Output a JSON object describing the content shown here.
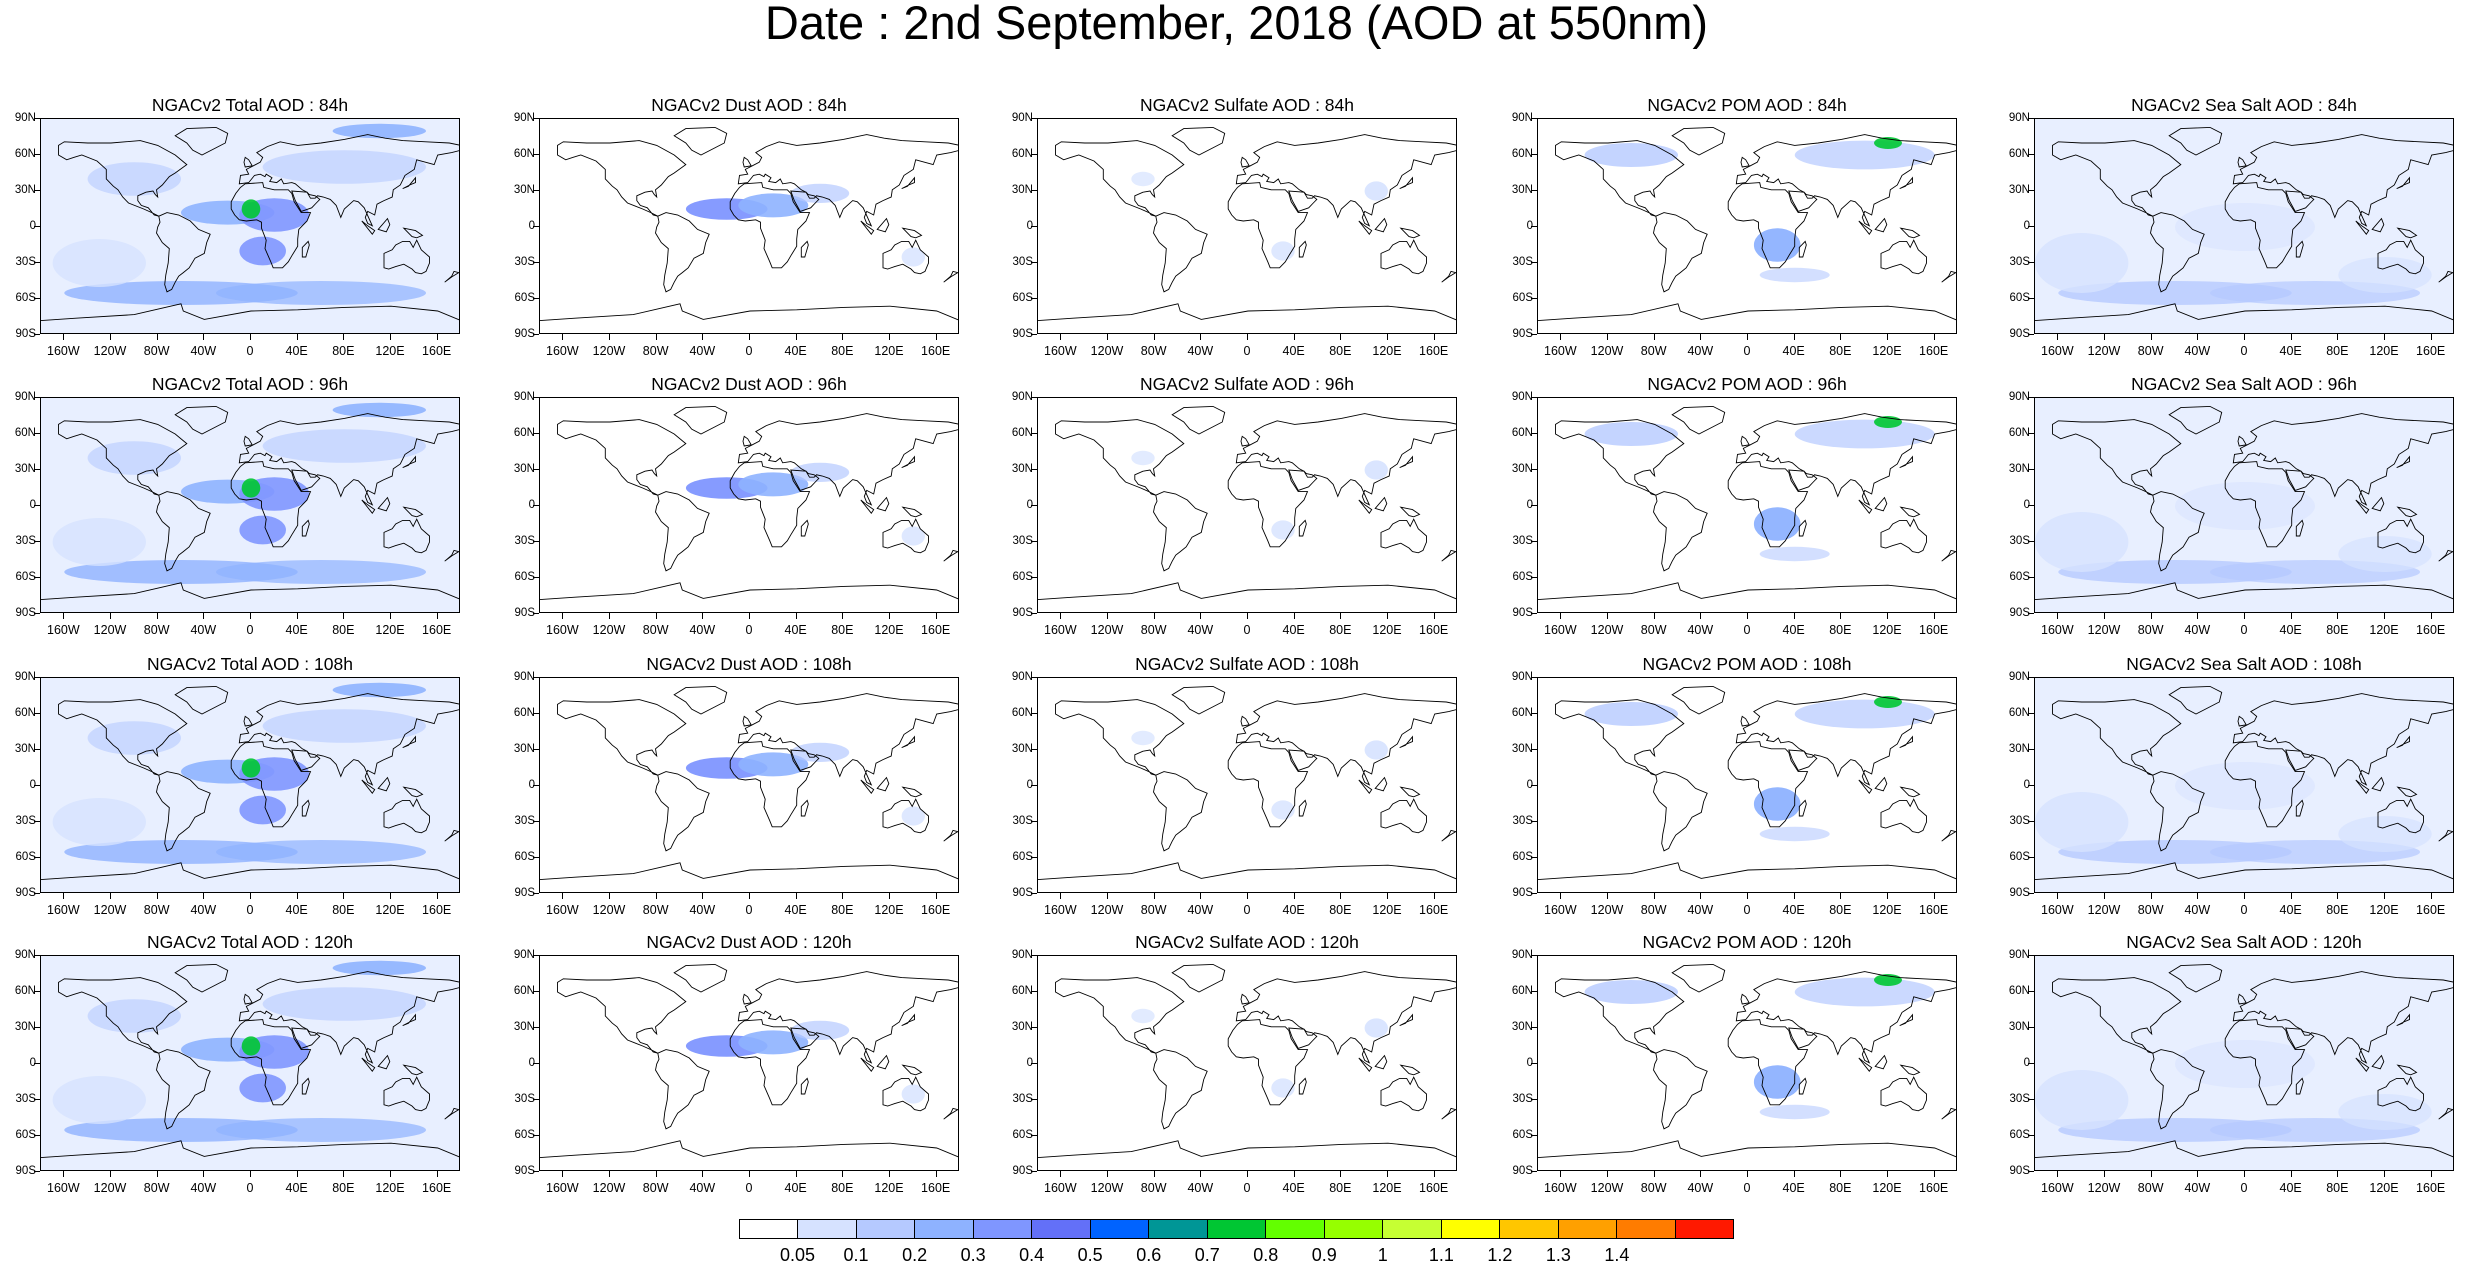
{
  "title": "Date : 2nd September, 2018 (AOD at 550nm)",
  "panel_titles": [
    [
      "NGACv2 Total AOD : 84h",
      "NGACv2 Dust AOD : 84h",
      "NGACv2 Sulfate AOD : 84h",
      "NGACv2 POM AOD : 84h",
      "NGACv2 Sea Salt AOD : 84h"
    ],
    [
      "NGACv2 Total AOD : 96h",
      "NGACv2 Dust AOD : 96h",
      "NGACv2 Sulfate AOD : 96h",
      "NGACv2 POM AOD : 96h",
      "NGACv2 Sea Salt AOD : 96h"
    ],
    [
      "NGACv2 Total AOD : 108h",
      "NGACv2 Dust AOD : 108h",
      "NGACv2 Sulfate AOD : 108h",
      "NGACv2 POM AOD : 108h",
      "NGACv2 Sea Salt AOD : 108h"
    ],
    [
      "NGACv2 Total AOD : 120h",
      "NGACv2 Dust AOD : 120h",
      "NGACv2 Sulfate AOD : 120h",
      "NGACv2 POM AOD : 120h",
      "NGACv2 Sea Salt  AOD : 120h"
    ]
  ],
  "lat_labels": [
    "90N",
    "60N",
    "30N",
    "0",
    "30S",
    "60S",
    "90S"
  ],
  "lon_labels": [
    "160W",
    "120W",
    "80W",
    "40W",
    "0",
    "40E",
    "80E",
    "120E",
    "160E"
  ],
  "colorbar": {
    "labels": [
      "0.05",
      "0.1",
      "0.2",
      "0.3",
      "0.4",
      "0.5",
      "0.6",
      "0.7",
      "0.8",
      "0.9",
      "1",
      "1.1",
      "1.2",
      "1.3",
      "1.4"
    ],
    "colors": [
      "#ffffff",
      "#d6e2ff",
      "#b5c9ff",
      "#8eb2ff",
      "#7f96ff",
      "#6370f8",
      "#0063ff",
      "#009696",
      "#00c633",
      "#63ff00",
      "#96ff00",
      "#c6ff33",
      "#ffff00",
      "#ffc600",
      "#ffa000",
      "#ff7c00",
      "#ff1900"
    ]
  },
  "map_style": {
    "total": "#aabdff",
    "dust": "#8ea5ff",
    "sulfate": "#c9d7ff",
    "pom": "#b5c6ff",
    "seasalt": "#bccdff"
  }
}
